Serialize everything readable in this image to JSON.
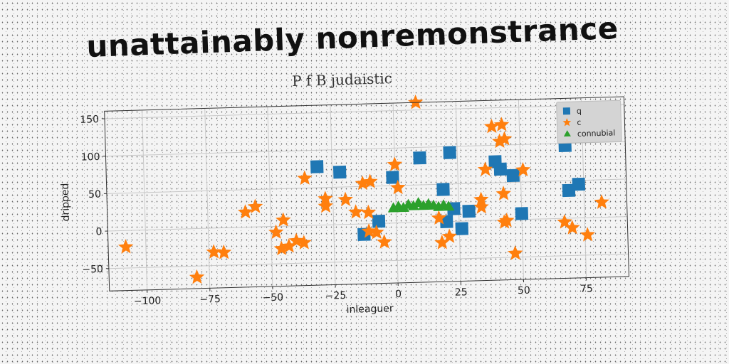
{
  "page_title": "unattainably nonremonstrance",
  "chart_data": {
    "type": "scatter",
    "title": "P f B judaistic",
    "xlabel": "inleaguer",
    "ylabel": "dripped",
    "xlim": [
      -115,
      92
    ],
    "ylim": [
      -80,
      160
    ],
    "xticks": [
      -100,
      -75,
      -50,
      -25,
      0,
      25,
      50,
      75
    ],
    "yticks": [
      -50,
      0,
      50,
      100,
      150
    ],
    "grid": true,
    "legend_position": "top-right",
    "series": [
      {
        "name": "q",
        "marker": "square",
        "color": "#1f77b4",
        "points": [
          [
            -31,
            78
          ],
          [
            -22,
            70
          ],
          [
            -1,
            61
          ],
          [
            10,
            86
          ],
          [
            22,
            92
          ],
          [
            19,
            43
          ],
          [
            23,
            17
          ],
          [
            29,
            13
          ],
          [
            20,
            0
          ],
          [
            26,
            -10
          ],
          [
            -7,
            3
          ],
          [
            -13,
            -14
          ],
          [
            40,
            78
          ],
          [
            42,
            68
          ],
          [
            47,
            59
          ],
          [
            50,
            8
          ],
          [
            68,
            97
          ],
          [
            69,
            37
          ],
          [
            73,
            45
          ]
        ]
      },
      {
        "name": "c",
        "marker": "star",
        "color": "#ff7f0e",
        "points": [
          [
            -108,
            -22
          ],
          [
            -80,
            -65
          ],
          [
            -73,
            -32
          ],
          [
            -69,
            -33
          ],
          [
            -60,
            20
          ],
          [
            -56,
            27
          ],
          [
            -48,
            -8
          ],
          [
            -45,
            8
          ],
          [
            -46,
            -30
          ],
          [
            -43,
            -27
          ],
          [
            -40,
            -20
          ],
          [
            -37,
            -23
          ],
          [
            -36,
            63
          ],
          [
            -28,
            35
          ],
          [
            -28,
            25
          ],
          [
            -20,
            33
          ],
          [
            -16,
            16
          ],
          [
            -13,
            54
          ],
          [
            -10,
            56
          ],
          [
            -11,
            15
          ],
          [
            -11,
            -10
          ],
          [
            -8,
            -12
          ],
          [
            -5,
            -25
          ],
          [
            0,
            78
          ],
          [
            1,
            47
          ],
          [
            9,
            160
          ],
          [
            17,
            5
          ],
          [
            18,
            -28
          ],
          [
            21,
            -20
          ],
          [
            34,
            28
          ],
          [
            34,
            18
          ],
          [
            36,
            68
          ],
          [
            39,
            125
          ],
          [
            42,
            105
          ],
          [
            43,
            127
          ],
          [
            44,
            108
          ],
          [
            43,
            35
          ],
          [
            43,
            -3
          ],
          [
            44,
            -1
          ],
          [
            47,
            -45
          ],
          [
            51,
            66
          ],
          [
            67,
            -5
          ],
          [
            70,
            -13
          ],
          [
            72,
            113
          ],
          [
            76,
            -23
          ],
          [
            82,
            20
          ]
        ]
      },
      {
        "name": "connubial",
        "marker": "triangle",
        "color": "#2ca02c",
        "points": [
          [
            -1,
            20
          ],
          [
            1,
            22
          ],
          [
            3,
            20
          ],
          [
            5,
            24
          ],
          [
            7,
            22
          ],
          [
            9,
            26
          ],
          [
            11,
            22
          ],
          [
            13,
            24
          ],
          [
            15,
            22
          ],
          [
            17,
            20
          ],
          [
            19,
            22
          ],
          [
            21,
            20
          ]
        ]
      }
    ]
  }
}
